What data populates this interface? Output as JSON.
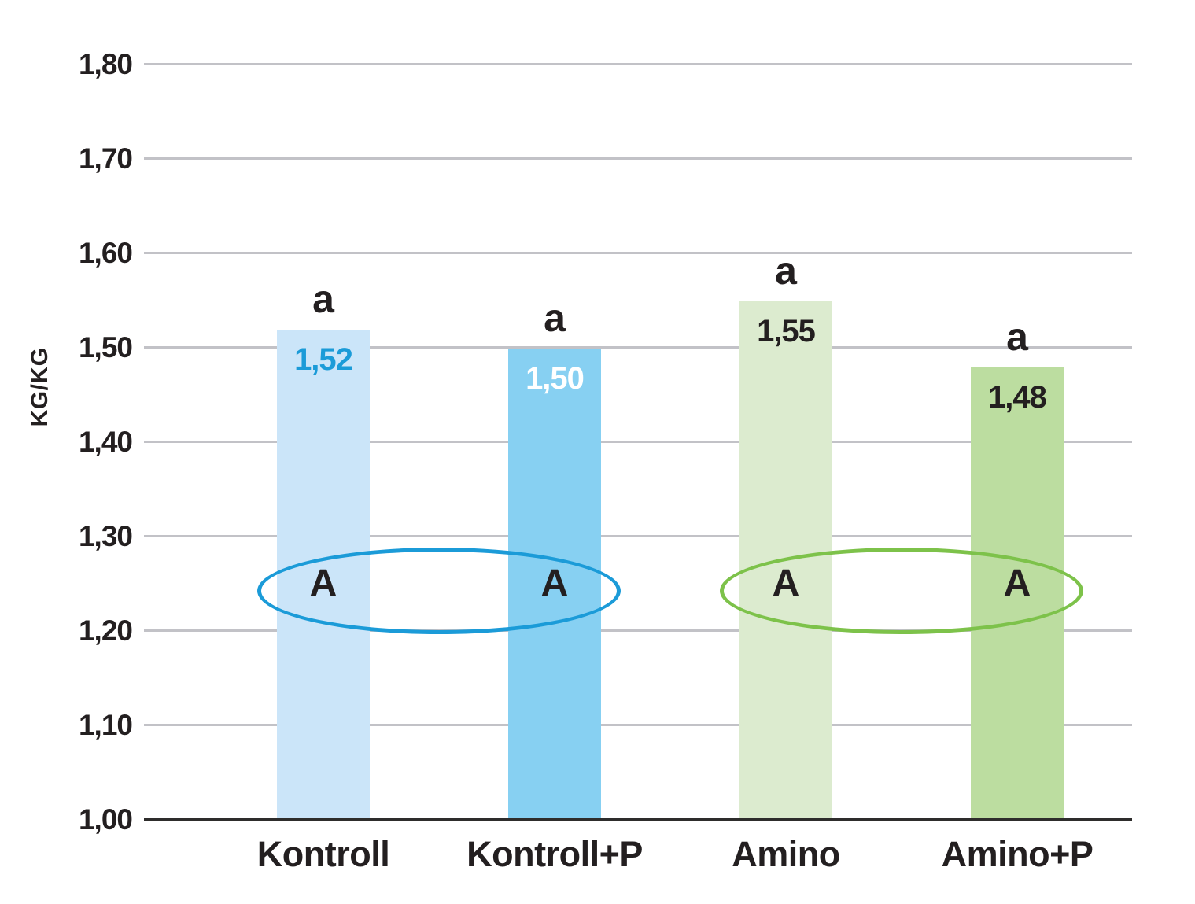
{
  "chart_data": {
    "type": "bar",
    "title": "",
    "xlabel": "",
    "ylabel": "KG/KG",
    "ylim": [
      1.0,
      1.8
    ],
    "grid": "horizontal",
    "y_ticks": [
      "1,00",
      "1,10",
      "1,20",
      "1,30",
      "1,40",
      "1,50",
      "1,60",
      "1,70",
      "1,80"
    ],
    "categories": [
      "Kontroll",
      "Kontroll+P",
      "Amino",
      "Amino+P"
    ],
    "values": [
      1.52,
      1.5,
      1.55,
      1.48
    ],
    "value_labels": [
      "1,52",
      "1,50",
      "1,55",
      "1,48"
    ],
    "bar_colors": [
      "#cbe5f9",
      "#87d0f2",
      "#dcebcf",
      "#bcdda0"
    ],
    "value_label_colors": [
      "#1b9bd8",
      "#ffffff",
      "#231f20",
      "#231f20"
    ],
    "sig_letters_above": [
      "a",
      "a",
      "a",
      "a"
    ],
    "sig_letters_group": [
      "A",
      "A",
      "A",
      "A"
    ],
    "groups": [
      {
        "name": "kontroll-group",
        "bars": [
          0,
          1
        ],
        "ellipse_color": "#1b9bd8"
      },
      {
        "name": "amino-group",
        "bars": [
          2,
          3
        ],
        "ellipse_color": "#7dc24a"
      }
    ],
    "colors": {
      "gridline": "#c2c2c7",
      "axis": "#2e2d2c",
      "text": "#231f20",
      "blue_accent": "#1b9bd8",
      "green_accent": "#7dc24a"
    }
  }
}
